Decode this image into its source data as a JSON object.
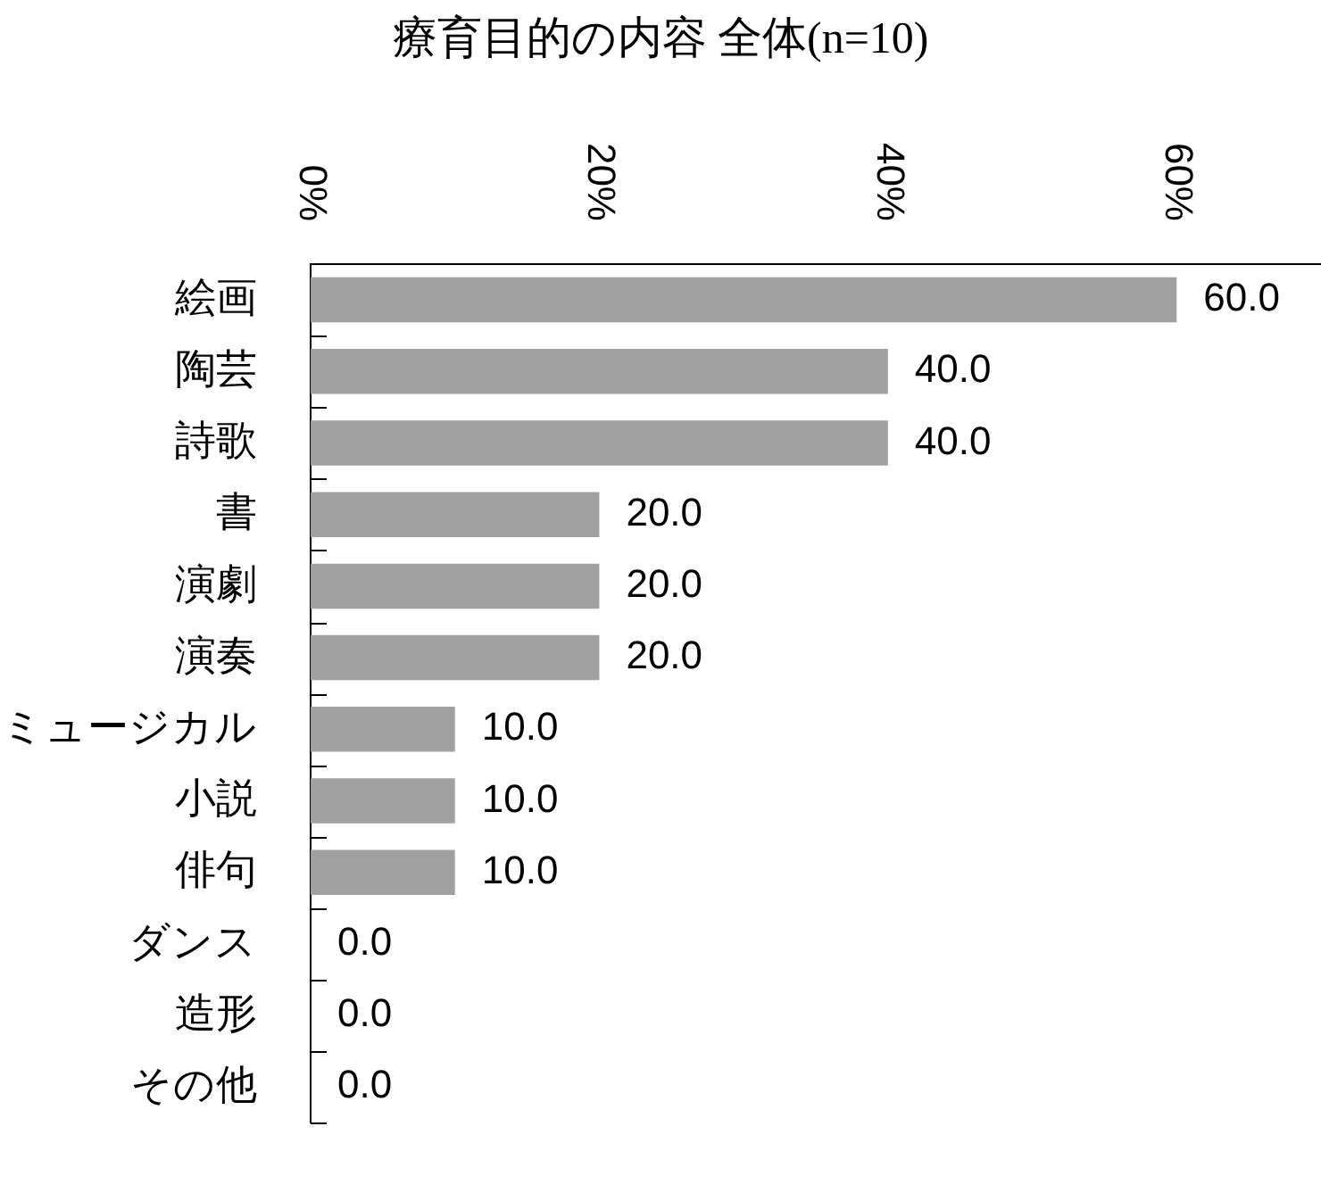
{
  "chart_data": {
    "type": "bar",
    "orientation": "horizontal",
    "title": "療育目的の内容 全体(n=10)",
    "categories": [
      "絵画",
      "陶芸",
      "詩歌",
      "書",
      "演劇",
      "演奏",
      "ミュージカル",
      "小説",
      "俳句",
      "ダンス",
      "造形",
      "その他"
    ],
    "values": [
      60,
      40,
      40,
      20,
      20,
      20,
      10,
      10,
      10,
      0,
      0,
      0
    ],
    "value_labels": [
      "60.0",
      "40.0",
      "40.0",
      "20.0",
      "20.0",
      "20.0",
      "10.0",
      "10.0",
      "10.0",
      "0.0",
      "0.0",
      "0.0"
    ],
    "color": "#a0a0a0",
    "xlim": [
      0,
      70
    ],
    "xticks": [
      {
        "value": 0,
        "label": "0%"
      },
      {
        "value": 20,
        "label": "20%"
      },
      {
        "value": 40,
        "label": "40%"
      },
      {
        "value": 60,
        "label": "60%"
      }
    ]
  }
}
